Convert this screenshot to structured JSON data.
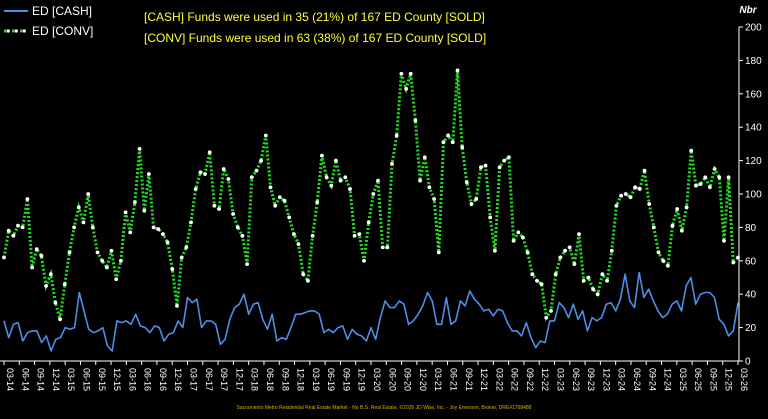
{
  "chart_data": {
    "type": "line",
    "ylabel": "Nbr",
    "ylim": [
      0,
      200
    ],
    "yticks": [
      0,
      20,
      40,
      60,
      80,
      100,
      120,
      140,
      160,
      180,
      200
    ],
    "grid": false,
    "legend_placement": "top-left",
    "x_tick_labels": [
      "03-14",
      "06-14",
      "09-14",
      "12-14",
      "03-15",
      "06-15",
      "09-15",
      "12-15",
      "03-16",
      "06-16",
      "09-16",
      "12-16",
      "03-17",
      "06-17",
      "09-17",
      "12-17",
      "03-18",
      "06-18",
      "09-18",
      "12-18",
      "03-19",
      "06-19",
      "09-19",
      "12-19",
      "03-20",
      "06-20",
      "09-20",
      "12-20",
      "03-21",
      "06-21",
      "09-21",
      "12-21",
      "03-22",
      "06-22",
      "09-22",
      "12-22",
      "03-23",
      "06-23",
      "09-23",
      "12-23",
      "03-24",
      "06-24",
      "09-24",
      "12-24",
      "03-25",
      "06-25",
      "09-25",
      "12-25",
      "03-26"
    ],
    "series": [
      {
        "name": "ED [CASH]",
        "color": "#4d8fe6",
        "style": "solid",
        "values": [
          24,
          14,
          22,
          23,
          12,
          17,
          18,
          18,
          11,
          15,
          6,
          13,
          14,
          20,
          19,
          20,
          41,
          30,
          19,
          17,
          18,
          20,
          9,
          6,
          24,
          23,
          24,
          22,
          28,
          21,
          20,
          17,
          21,
          20,
          12,
          16,
          17,
          24,
          20,
          38,
          35,
          37,
          20,
          24,
          24,
          22,
          10,
          13,
          25,
          32,
          34,
          40,
          28,
          34,
          35,
          25,
          19,
          28,
          12,
          14,
          13,
          20,
          28,
          28,
          29,
          30,
          30,
          28,
          17,
          19,
          17,
          20,
          21,
          13,
          19,
          16,
          15,
          12,
          20,
          13,
          26,
          36,
          32,
          32,
          36,
          34,
          22,
          24,
          28,
          33,
          41,
          36,
          22,
          22,
          38,
          22,
          24,
          36,
          33,
          42,
          37,
          34,
          30,
          31,
          27,
          31,
          30,
          23,
          18,
          18,
          15,
          23,
          14,
          8,
          12,
          11,
          24,
          24,
          35,
          32,
          26,
          34,
          25,
          30,
          18,
          26,
          24,
          26,
          34,
          35,
          30,
          37,
          52,
          36,
          32,
          53,
          38,
          43,
          36,
          30,
          26,
          28,
          34,
          36,
          30,
          45,
          50,
          34,
          40,
          41,
          41,
          38,
          25,
          22,
          15,
          18,
          35
        ]
      },
      {
        "name": "ED [CONV]",
        "color": "#22dd22",
        "style": "dotted-white-markers",
        "values": [
          62,
          78,
          75,
          81,
          80,
          97,
          56,
          67,
          63,
          45,
          52,
          35,
          25,
          46,
          65,
          80,
          92,
          83,
          100,
          80,
          65,
          60,
          56,
          66,
          49,
          60,
          89,
          77,
          95,
          127,
          90,
          112,
          80,
          79,
          76,
          71,
          55,
          33,
          62,
          68,
          83,
          103,
          113,
          112,
          125,
          93,
          91,
          115,
          109,
          88,
          80,
          75,
          58,
          110,
          114,
          120,
          135,
          104,
          93,
          98,
          96,
          86,
          76,
          70,
          52,
          48,
          75,
          95,
          123,
          110,
          105,
          120,
          108,
          110,
          103,
          75,
          76,
          60,
          83,
          100,
          108,
          68,
          68,
          118,
          135,
          172,
          163,
          172,
          144,
          108,
          122,
          104,
          97,
          65,
          131,
          135,
          131,
          174,
          128,
          107,
          94,
          97,
          116,
          117,
          86,
          66,
          116,
          120,
          122,
          72,
          77,
          74,
          65,
          52,
          48,
          46,
          26,
          30,
          52,
          62,
          66,
          68,
          58,
          76,
          48,
          50,
          43,
          40,
          52,
          48,
          66,
          93,
          99,
          100,
          98,
          104,
          103,
          114,
          94,
          80,
          65,
          60,
          57,
          81,
          91,
          78,
          92,
          126,
          105,
          106,
          110,
          104,
          115,
          110,
          72,
          110,
          59,
          62
        ]
      }
    ]
  },
  "legend": [
    {
      "label": "ED [CASH]",
      "color": "#4d8fe6"
    },
    {
      "label": "ED [CONV]",
      "color": "#22dd22"
    }
  ],
  "annotations": [
    "[CASH] Funds were used in 35 (21%) of 167 ED County [SOLD]",
    "[CONV] Funds were used in 63 (38%) of 167 ED County [SOLD]"
  ],
  "footer": "Sacramento Metro Residential Real Estate Market - No B.S. Real Estate, ©2026 JD Wise, Inc. - Joy Emerson, Broker, DRE#1768488"
}
